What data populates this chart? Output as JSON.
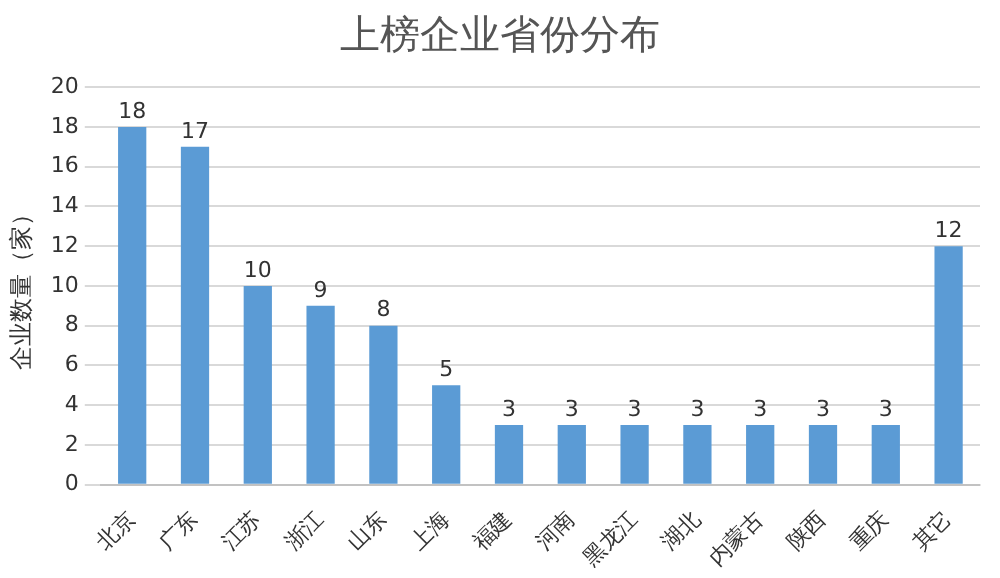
{
  "chart_data": {
    "type": "bar",
    "title": "上榜企业省份分布",
    "ylabel": "企业数量（家）",
    "categories": [
      "北京",
      "广东",
      "江苏",
      "浙江",
      "山东",
      "上海",
      "福建",
      "河南",
      "黑龙江",
      "湖北",
      "内蒙古",
      "陕西",
      "重庆",
      "其它"
    ],
    "values": [
      18,
      17,
      10,
      9,
      8,
      5,
      3,
      3,
      3,
      3,
      3,
      3,
      3,
      12
    ],
    "color": "#5b9bd5",
    "ylim": [
      0,
      20
    ],
    "yticks": [
      0,
      2,
      4,
      6,
      8,
      10,
      12,
      14,
      16,
      18,
      20
    ],
    "grid": "y",
    "data_labels": true
  }
}
